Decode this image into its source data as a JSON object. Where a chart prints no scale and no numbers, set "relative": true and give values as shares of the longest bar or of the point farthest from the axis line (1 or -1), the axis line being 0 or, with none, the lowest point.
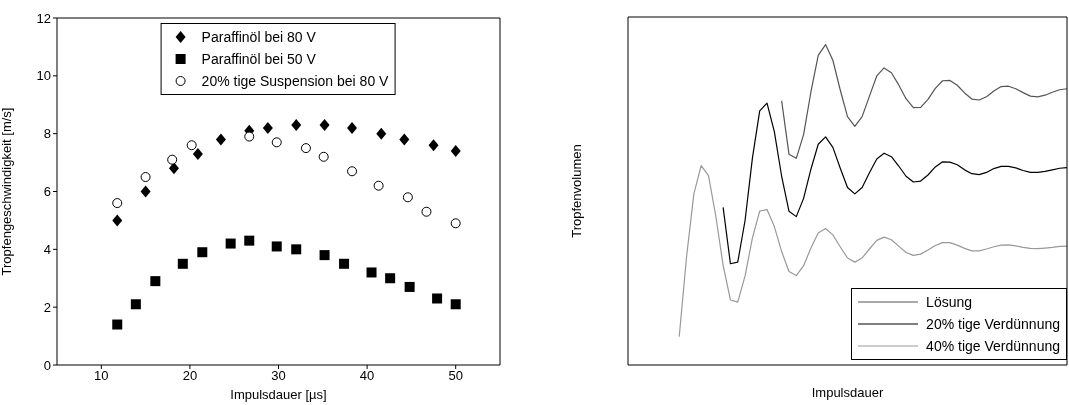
{
  "chart_data": [
    {
      "type": "scatter",
      "xlabel": "Impulsdauer [µs]",
      "ylabel": "Tropfengeschwindigkeit [m/s]",
      "xlim": [
        5,
        55
      ],
      "xticks": [
        10,
        20,
        30,
        40,
        50
      ],
      "ylim": [
        0,
        12
      ],
      "yticks": [
        0,
        2,
        4,
        6,
        8,
        10,
        12
      ],
      "legend": "top",
      "grid": false,
      "series": [
        {
          "name": "Paraffinöl bei 80 V",
          "color": "#000000",
          "marker": "diamond",
          "x": [
            11.8,
            15.0,
            18.2,
            20.9,
            23.5,
            26.7,
            28.8,
            32.0,
            35.2,
            38.3,
            41.6,
            44.2,
            47.5,
            50.0
          ],
          "values": [
            5.0,
            6.0,
            6.8,
            7.3,
            7.8,
            8.1,
            8.2,
            8.3,
            8.3,
            8.2,
            8.0,
            7.8,
            7.6,
            7.4
          ]
        },
        {
          "name": "Paraffinöl bei 50 V",
          "color": "#000000",
          "marker": "square",
          "x": [
            11.8,
            13.9,
            16.1,
            19.2,
            21.4,
            24.6,
            26.7,
            29.8,
            32.0,
            35.2,
            37.4,
            40.5,
            42.6,
            44.8,
            47.9,
            50.0
          ],
          "values": [
            1.4,
            2.1,
            2.9,
            3.5,
            3.9,
            4.2,
            4.3,
            4.1,
            4.0,
            3.8,
            3.5,
            3.2,
            3.0,
            2.7,
            2.3,
            2.1
          ]
        },
        {
          "name": "20% tige Suspension bei 80 V",
          "color": "#000000",
          "marker": "circle",
          "x": [
            11.8,
            15.0,
            18.0,
            20.2,
            26.7,
            29.8,
            33.1,
            35.1,
            38.3,
            41.3,
            44.6,
            46.7,
            50.0
          ],
          "values": [
            5.6,
            6.5,
            7.1,
            7.6,
            7.9,
            7.7,
            7.5,
            7.2,
            6.7,
            6.2,
            5.8,
            5.3,
            4.9
          ]
        }
      ]
    },
    {
      "type": "line",
      "relative": true,
      "xlabel": "Impulsdauer",
      "ylabel": "Tropfenvolumen",
      "legend": "bottom right",
      "marker": "none",
      "line_style": "solid",
      "grid": false,
      "categories": [
        null,
        null,
        null,
        null,
        null,
        null,
        null,
        null,
        null,
        null,
        null,
        null,
        null,
        null,
        null,
        null,
        null,
        null,
        null,
        null,
        null,
        null,
        null,
        null,
        null,
        null,
        null,
        null,
        null,
        null,
        null,
        null,
        null,
        null,
        null,
        null,
        null,
        null,
        null,
        null,
        null,
        null,
        null,
        null,
        null,
        null,
        null,
        null,
        null,
        null,
        null,
        null,
        null,
        null,
        null,
        null,
        null,
        null,
        null,
        null,
        null
      ],
      "series": [
        {
          "name": "Lösung",
          "color": "#555555",
          "values": [
            null,
            null,
            null,
            null,
            null,
            null,
            null,
            null,
            null,
            null,
            null,
            null,
            null,
            null,
            null,
            null,
            null,
            null,
            null,
            null,
            null,
            0.824,
            0.658,
            0.645,
            0.719,
            0.852,
            0.966,
            1,
            0.951,
            0.859,
            0.775,
            0.745,
            0.775,
            0.839,
            0.902,
            0.927,
            0.912,
            0.874,
            0.831,
            0.803,
            0.804,
            0.829,
            0.863,
            0.887,
            0.888,
            0.873,
            0.849,
            0.83,
            0.827,
            0.837,
            0.855,
            0.869,
            0.87,
            0.862,
            0.85,
            0.839,
            0.837,
            0.842,
            0.851,
            0.859,
            0.862
          ]
        },
        {
          "name": "20% tige Verdünnung",
          "color": "#000000",
          "values": [
            null,
            null,
            null,
            null,
            null,
            null,
            null,
            null,
            null,
            null,
            null,
            null,
            null,
            0.492,
            0.316,
            0.321,
            0.451,
            0.645,
            0.793,
            0.817,
            0.728,
            0.589,
            0.48,
            0.463,
            0.52,
            0.611,
            0.689,
            0.712,
            0.679,
            0.615,
            0.554,
            0.534,
            0.554,
            0.6,
            0.643,
            0.661,
            0.65,
            0.621,
            0.589,
            0.571,
            0.574,
            0.593,
            0.618,
            0.634,
            0.633,
            0.625,
            0.609,
            0.597,
            0.594,
            0.601,
            0.613,
            0.62,
            0.62,
            0.615,
            0.607,
            0.601,
            0.601,
            0.604,
            0.609,
            0.614,
            0.616
          ]
        },
        {
          "name": "40% tige Verdünnung",
          "color": "#999999",
          "values": [
            null,
            null,
            null,
            null,
            null,
            null,
            null,
            0.088,
            0.337,
            0.534,
            0.622,
            0.591,
            0.465,
            0.311,
            0.203,
            0.196,
            0.278,
            0.396,
            0.48,
            0.485,
            0.432,
            0.354,
            0.292,
            0.279,
            0.31,
            0.365,
            0.412,
            0.426,
            0.406,
            0.369,
            0.334,
            0.321,
            0.334,
            0.362,
            0.389,
            0.399,
            0.391,
            0.371,
            0.351,
            0.342,
            0.346,
            0.359,
            0.373,
            0.382,
            0.382,
            0.374,
            0.364,
            0.356,
            0.356,
            0.362,
            0.369,
            0.374,
            0.375,
            0.372,
            0.367,
            0.364,
            0.363,
            0.365,
            0.367,
            0.37,
            0.371
          ]
        }
      ]
    }
  ]
}
